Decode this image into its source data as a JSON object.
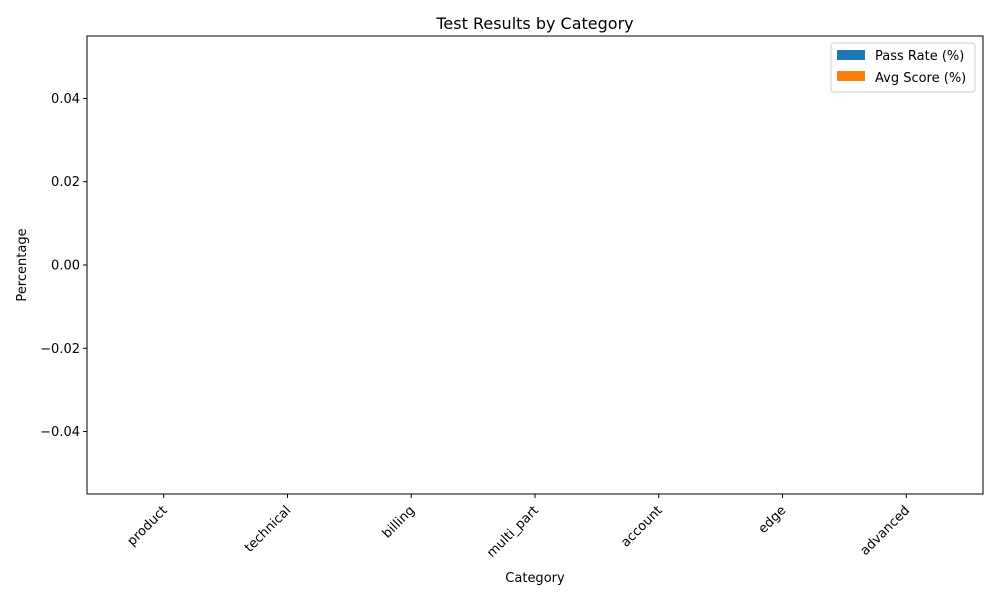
{
  "chart_data": {
    "type": "bar",
    "title": "Test Results by Category",
    "xlabel": "Category",
    "ylabel": "Percentage",
    "categories": [
      "product",
      "technical",
      "billing",
      "multi_part",
      "account",
      "edge",
      "advanced"
    ],
    "series": [
      {
        "name": "Pass Rate (%)",
        "color": "#1f77b4",
        "values": [
          0,
          0,
          0,
          0,
          0,
          0,
          0
        ]
      },
      {
        "name": "Avg Score (%)",
        "color": "#ff7f0e",
        "values": [
          0,
          0,
          0,
          0,
          0,
          0,
          0
        ]
      }
    ],
    "ylim": [
      -0.055,
      0.055
    ],
    "yticks": [
      0.04,
      0.02,
      0.0,
      -0.02,
      -0.04
    ],
    "ytick_labels": [
      "0.04",
      "0.02",
      "0.00",
      "−0.02",
      "−0.04"
    ],
    "legend": "top-right",
    "grid": false
  }
}
